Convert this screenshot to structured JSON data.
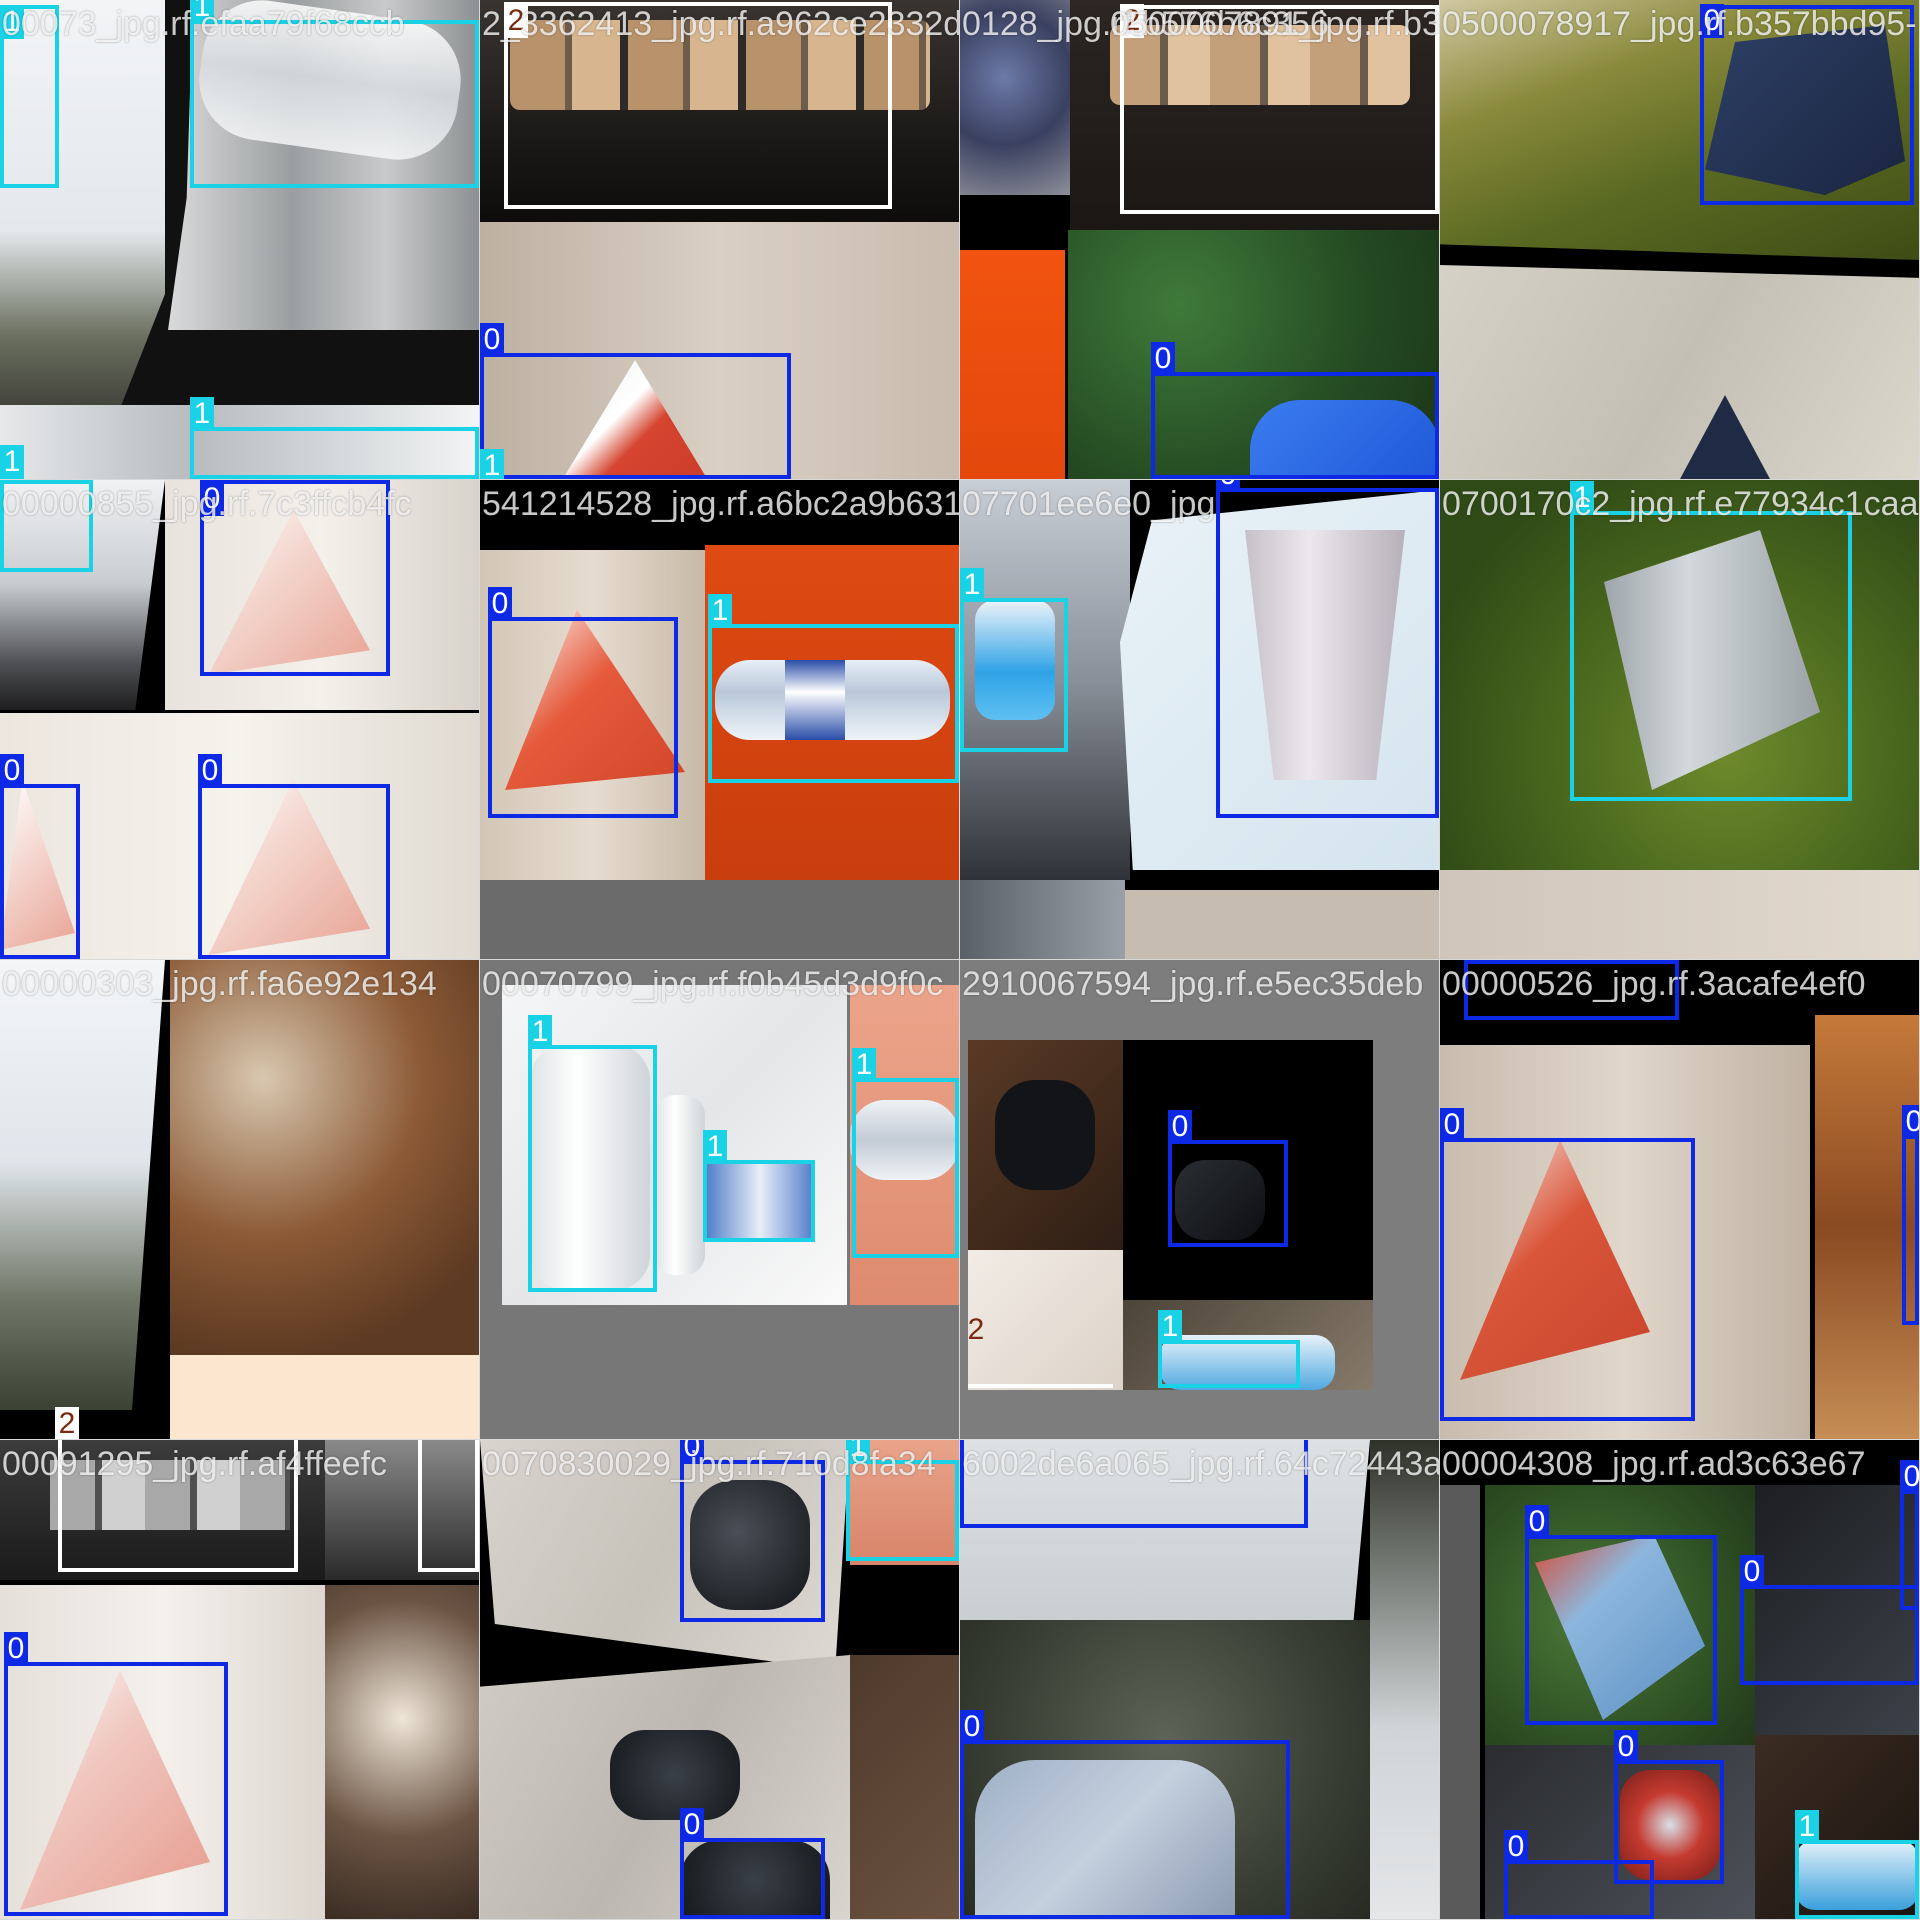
{
  "classes": {
    "0": {
      "color": "#0d29e6"
    },
    "1": {
      "color": "#19d2e6"
    },
    "2": {
      "color": "#ffffff",
      "label_bg": "#ffffff",
      "label_color": "#7a2a10"
    }
  },
  "tiles": [
    {
      "file": "00073_jpg.rf.efaa79f68ccb",
      "labels": [
        "1",
        "1",
        "1",
        "1"
      ]
    },
    {
      "file": "2_3362413_jpg.rf.a962ce2332d291",
      "labels": [
        "2",
        "0",
        "1"
      ]
    },
    {
      "file": "0128_jpg.rf.b576b6c356",
      "file2": "0500007891_jpg.rf.b357bbd95",
      "labels": [
        "2",
        "0"
      ]
    },
    {
      "file": "0500078917_jpg.rf.b357bbd95-1",
      "labels": [
        "0"
      ]
    },
    {
      "file": "00000855_jpg.rf.7c3ffcb4fc",
      "labels": [
        "1",
        "0",
        "0",
        "0"
      ]
    },
    {
      "file": "541214528_jpg.rf.a6bc2a9b6317c63",
      "labels": [
        "0",
        "1"
      ]
    },
    {
      "file": "07701ee6e0_jpg",
      "labels": [
        "1",
        "0"
      ]
    },
    {
      "file": "0700170c2_jpg.rf.e77934c1caac",
      "labels": [
        "1"
      ]
    },
    {
      "file": "00000303_jpg.rf.fa6e92e134",
      "labels": [
        "2"
      ]
    },
    {
      "file": "00070799_jpg.rf.f0b45d3d9f0c",
      "labels": [
        "1",
        "1",
        "1"
      ]
    },
    {
      "file": "2910067594_jpg.rf.e5ec35deb",
      "labels": [
        "0",
        "2",
        "1"
      ]
    },
    {
      "file": "00000526_jpg.rf.3acafe4ef0",
      "labels": [
        "0",
        "0",
        "0"
      ]
    },
    {
      "file": "00091295_jpg.rf.af4ffeefc",
      "labels": [
        "2",
        "2",
        "0"
      ]
    },
    {
      "file": "0070830029_jpg.rf.710d8fa34",
      "labels": [
        "0",
        "1",
        "0"
      ]
    },
    {
      "file": "6002de6a065_jpg.rf.64c72443af",
      "labels": [
        "0"
      ]
    },
    {
      "file": "00004308_jpg.rf.ad3c63e67",
      "labels": [
        "0",
        "0",
        "0",
        "0",
        "0",
        "1"
      ]
    }
  ]
}
